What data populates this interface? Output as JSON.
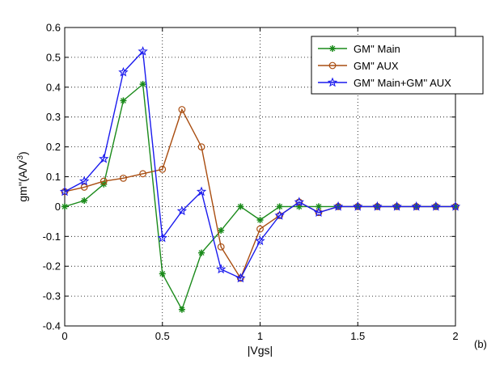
{
  "chart_data": {
    "type": "line",
    "xlabel": "|Vgs|",
    "ylabel": "gm''(A/V",
    "ylabel_sup": "3",
    "ylabel_close": ")",
    "annotation": "(b)",
    "xlim": [
      0,
      2
    ],
    "ylim": [
      -0.4,
      0.6
    ],
    "x_ticks": [
      0,
      0.5,
      1,
      1.5,
      2
    ],
    "x_tick_labels": [
      "0",
      "0.5",
      "1",
      "1.5",
      "2"
    ],
    "y_ticks": [
      -0.4,
      -0.3,
      -0.2,
      -0.1,
      0,
      0.1,
      0.2,
      0.3,
      0.4,
      0.5,
      0.6
    ],
    "y_tick_labels": [
      "-0.4",
      "-0.3",
      "-0.2",
      "-0.1",
      "0",
      "0.1",
      "0.2",
      "0.3",
      "0.4",
      "0.5",
      "0.6"
    ],
    "grid": true,
    "legend_position": "top-right",
    "x": [
      0,
      0.1,
      0.2,
      0.3,
      0.4,
      0.5,
      0.6,
      0.7,
      0.8,
      0.9,
      1.0,
      1.1,
      1.2,
      1.3,
      1.4,
      1.5,
      1.6,
      1.7,
      1.8,
      1.9,
      2.0
    ],
    "series": [
      {
        "name": "GM'' Main",
        "color": "#1a8a1a",
        "marker": "plus",
        "values": [
          0.0,
          0.02,
          0.075,
          0.355,
          0.41,
          -0.225,
          -0.345,
          -0.155,
          -0.08,
          0.0,
          -0.045,
          0.0,
          0.0,
          0.0,
          0.0,
          0.0,
          0.0,
          0.0,
          0.0,
          0.0,
          0.0
        ]
      },
      {
        "name": "GM'' AUX",
        "color": "#a94d10",
        "marker": "circle",
        "values": [
          0.05,
          0.065,
          0.085,
          0.095,
          0.11,
          0.125,
          0.325,
          0.2,
          -0.135,
          -0.24,
          -0.075,
          -0.03,
          0.015,
          -0.02,
          0.0,
          0.0,
          0.0,
          0.0,
          0.0,
          0.0,
          0.0
        ]
      },
      {
        "name": "GM'' Main+GM'' AUX",
        "color": "#1a1aee",
        "marker": "star",
        "values": [
          0.05,
          0.085,
          0.16,
          0.45,
          0.52,
          -0.105,
          -0.015,
          0.05,
          -0.21,
          -0.24,
          -0.115,
          -0.03,
          0.015,
          -0.02,
          0.0,
          0.0,
          0.0,
          0.0,
          0.0,
          0.0,
          0.0
        ]
      }
    ]
  }
}
